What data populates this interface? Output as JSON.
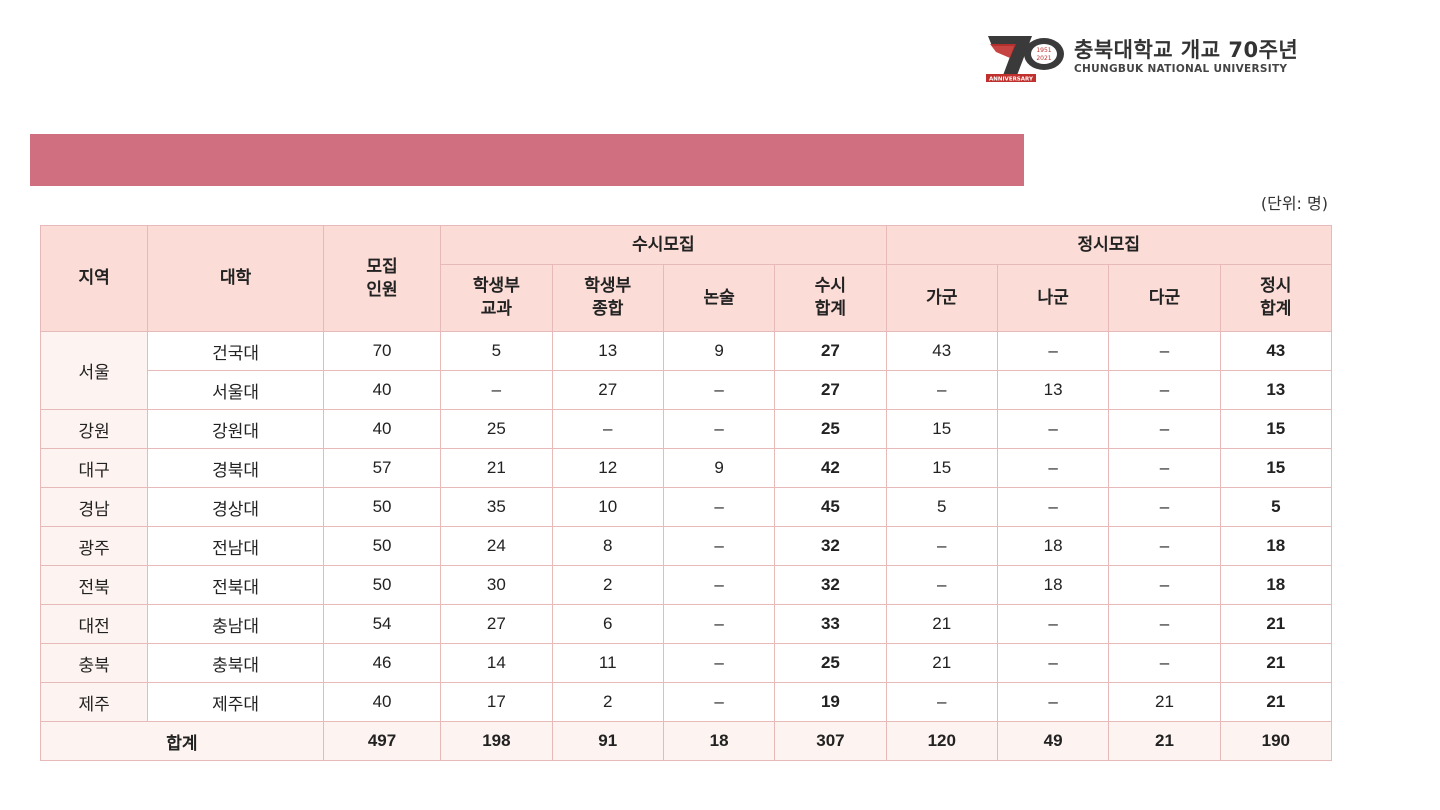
{
  "logo": {
    "name": "충북대학교 개교 70주년",
    "sub": "CHUNGBUK NATIONAL UNIVERSITY",
    "mark_digit": "7",
    "anniversary": "ANNIVERSARY",
    "years_top": "1951",
    "years_bottom": "2021"
  },
  "unit": "(단위: 명)",
  "headers": {
    "region": "지역",
    "univ": "대학",
    "quota": "모집\n인원",
    "susi": "수시모집",
    "jeongsi": "정시모집",
    "susi_cols": [
      "학생부\n교과",
      "학생부\n종합",
      "논술",
      "수시\n합계"
    ],
    "jeongsi_cols": [
      "가군",
      "나군",
      "다군",
      "정시\n합계"
    ]
  },
  "rows": [
    {
      "region": "서울",
      "univ": "건국대",
      "quota": "70",
      "s1": "5",
      "s2": "13",
      "s3": "9",
      "stotal": "27",
      "j1": "43",
      "j2": "–",
      "j3": "–",
      "jtotal": "43"
    },
    {
      "region": "",
      "univ": "서울대",
      "quota": "40",
      "s1": "–",
      "s2": "27",
      "s3": "–",
      "stotal": "27",
      "j1": "–",
      "j2": "13",
      "j3": "–",
      "jtotal": "13"
    },
    {
      "region": "강원",
      "univ": "강원대",
      "quota": "40",
      "s1": "25",
      "s2": "–",
      "s3": "–",
      "stotal": "25",
      "j1": "15",
      "j2": "–",
      "j3": "–",
      "jtotal": "15"
    },
    {
      "region": "대구",
      "univ": "경북대",
      "quota": "57",
      "s1": "21",
      "s2": "12",
      "s3": "9",
      "stotal": "42",
      "j1": "15",
      "j2": "–",
      "j3": "–",
      "jtotal": "15"
    },
    {
      "region": "경남",
      "univ": "경상대",
      "quota": "50",
      "s1": "35",
      "s2": "10",
      "s3": "–",
      "stotal": "45",
      "j1": "5",
      "j2": "–",
      "j3": "–",
      "jtotal": "5"
    },
    {
      "region": "광주",
      "univ": "전남대",
      "quota": "50",
      "s1": "24",
      "s2": "8",
      "s3": "–",
      "stotal": "32",
      "j1": "–",
      "j2": "18",
      "j3": "–",
      "jtotal": "18"
    },
    {
      "region": "전북",
      "univ": "전북대",
      "quota": "50",
      "s1": "30",
      "s2": "2",
      "s3": "–",
      "stotal": "32",
      "j1": "–",
      "j2": "18",
      "j3": "–",
      "jtotal": "18"
    },
    {
      "region": "대전",
      "univ": "충남대",
      "quota": "54",
      "s1": "27",
      "s2": "6",
      "s3": "–",
      "stotal": "33",
      "j1": "21",
      "j2": "–",
      "j3": "–",
      "jtotal": "21"
    },
    {
      "region": "충북",
      "univ": "충북대",
      "quota": "46",
      "s1": "14",
      "s2": "11",
      "s3": "–",
      "stotal": "25",
      "j1": "21",
      "j2": "–",
      "j3": "–",
      "jtotal": "21"
    },
    {
      "region": "제주",
      "univ": "제주대",
      "quota": "40",
      "s1": "17",
      "s2": "2",
      "s3": "–",
      "stotal": "19",
      "j1": "–",
      "j2": "–",
      "j3": "21",
      "jtotal": "21"
    }
  ],
  "sum": {
    "label": "합계",
    "quota": "497",
    "s1": "198",
    "s2": "91",
    "s3": "18",
    "stotal": "307",
    "j1": "120",
    "j2": "49",
    "j3": "21",
    "jtotal": "190"
  },
  "colors": {
    "title_bar": "#cf6f7f",
    "header_bg": "#fbdcd6",
    "border": "#e8b9b9",
    "logo_red": "#c0302c",
    "logo_dark": "#3a3a3a"
  }
}
